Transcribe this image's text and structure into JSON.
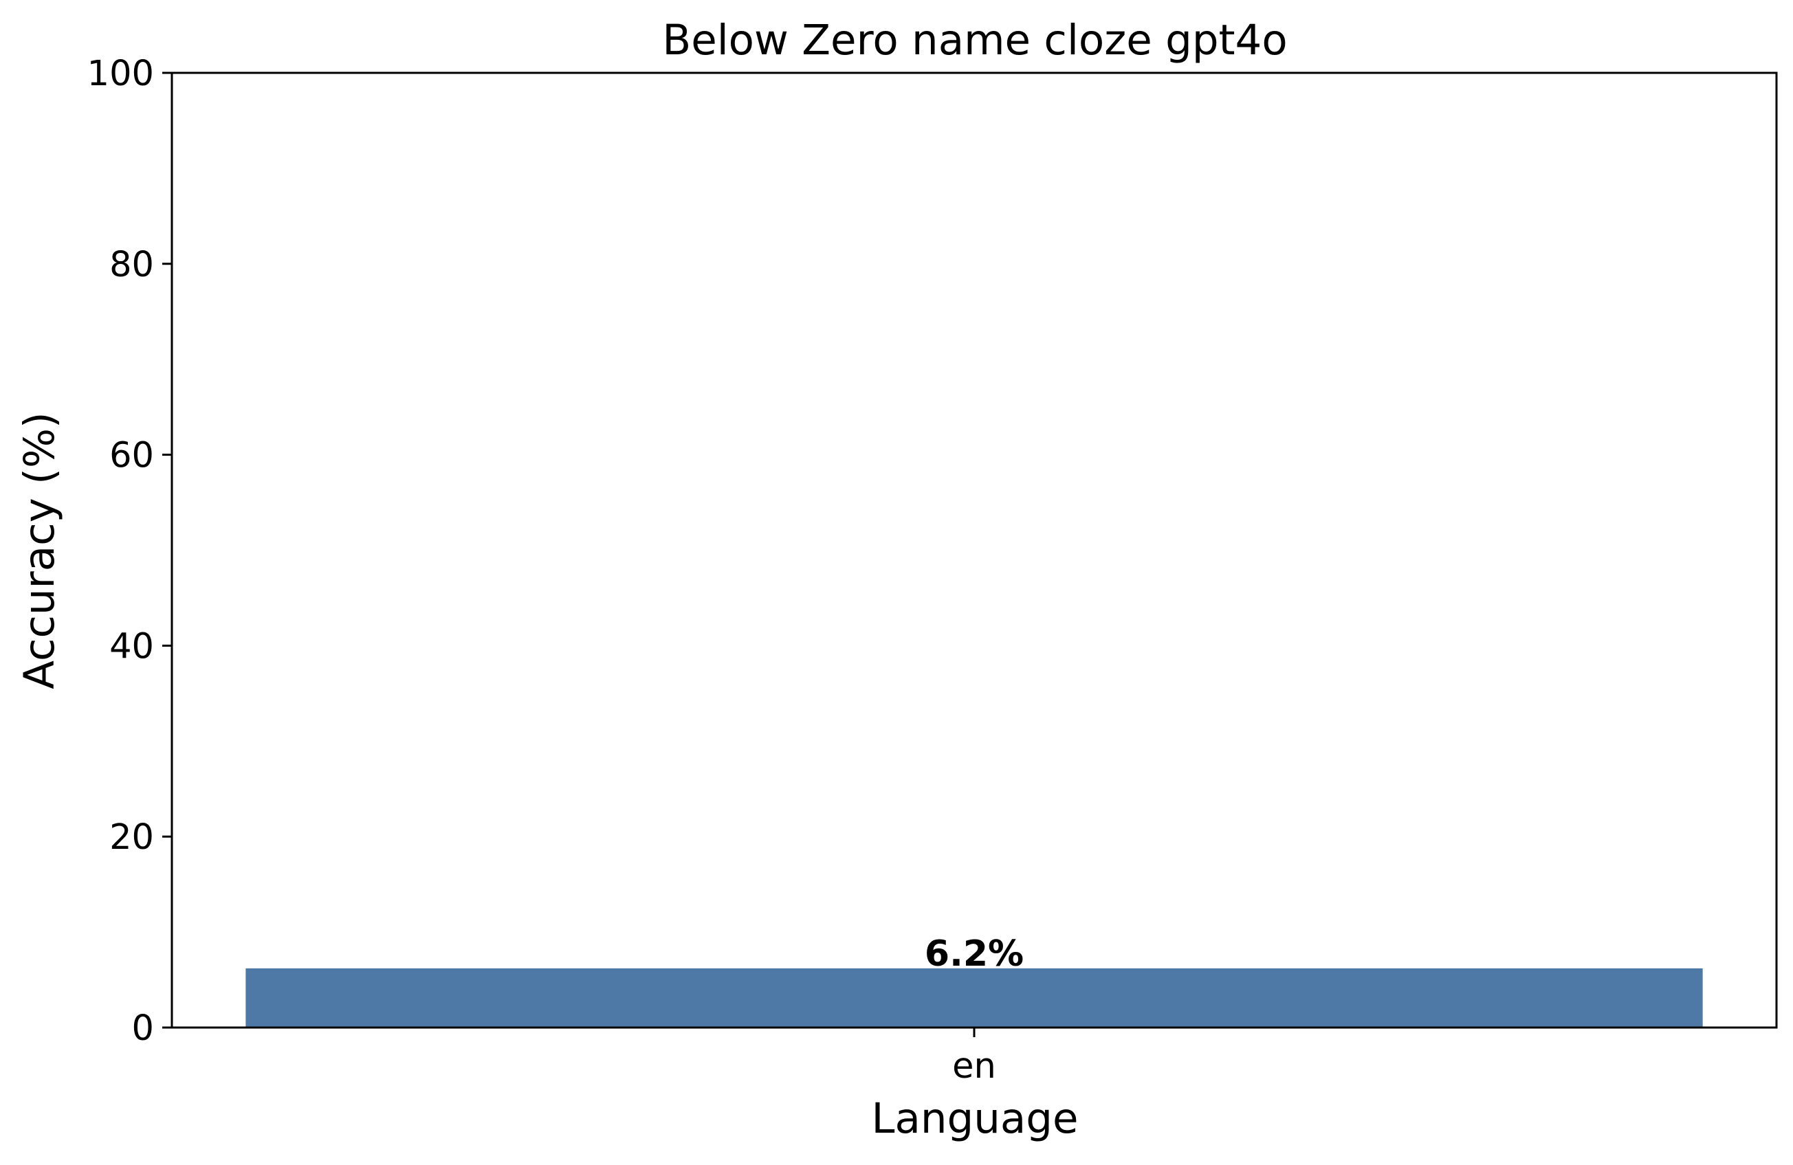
{
  "chart_data": {
    "type": "bar",
    "title": "Below Zero name cloze gpt4o",
    "xlabel": "Language",
    "ylabel": "Accuracy (%)",
    "categories": [
      "en"
    ],
    "values": [
      6.2
    ],
    "value_labels": [
      "6.2%"
    ],
    "ylim": [
      0,
      100
    ],
    "yticks": [
      0,
      20,
      40,
      60,
      80,
      100
    ],
    "ytick_labels": [
      "0",
      "20",
      "40",
      "60",
      "80",
      "100"
    ],
    "grid": false,
    "legend": "none",
    "bar_color": "#4e79a7"
  }
}
